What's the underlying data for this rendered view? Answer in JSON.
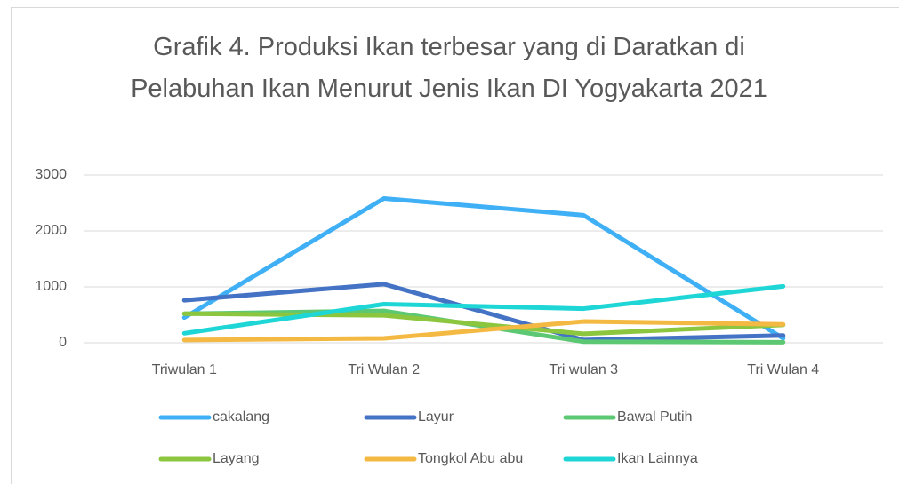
{
  "chart_data": {
    "type": "line",
    "title": "Grafik 4. Produksi Ikan terbesar yang di Daratkan di Pelabuhan Ikan Menurut Jenis Ikan DI Yogyakarta 2021",
    "categories": [
      "Triwulan 1",
      "Tri Wulan 2",
      "Tri wulan 3",
      "Tri Wulan 4"
    ],
    "series": [
      {
        "name": "cakalang",
        "color": "#3fb0f5",
        "values": [
          450,
          2580,
          2280,
          80
        ]
      },
      {
        "name": "Layur",
        "color": "#4472c4",
        "values": [
          760,
          1050,
          50,
          130
        ]
      },
      {
        "name": "Bawal Putih",
        "color": "#5cc873",
        "values": [
          520,
          570,
          20,
          10
        ]
      },
      {
        "name": "Layang",
        "color": "#8cc63f",
        "values": [
          520,
          490,
          160,
          320
        ]
      },
      {
        "name": "Tongkol Abu abu",
        "color": "#f4b942",
        "values": [
          50,
          80,
          380,
          330
        ]
      },
      {
        "name": "Ikan Lainnya",
        "color": "#1fd6d6",
        "values": [
          170,
          690,
          610,
          1010
        ]
      }
    ],
    "ylim": [
      0,
      3000
    ],
    "yticks": [
      0,
      1000,
      2000,
      3000
    ],
    "grid": true,
    "legend": "bottom"
  }
}
